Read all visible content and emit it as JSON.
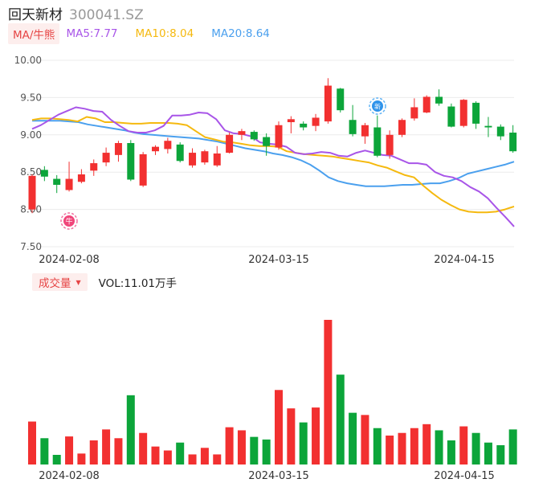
{
  "header": {
    "name": "回天新材",
    "code": "300041.SZ"
  },
  "ma": {
    "tag": "MA/牛熊",
    "ma5": "MA5:7.77",
    "ma10": "MA10:8.04",
    "ma20": "MA20:8.64"
  },
  "volume": {
    "tag": "成交量",
    "text": "VOL:11.01万手"
  },
  "markers": {
    "bull": "牛",
    "new": "新"
  },
  "colors": {
    "up": "#f23030",
    "down": "#0ca53a",
    "ma5": "#a855e8",
    "ma10": "#f5b90f",
    "ma20": "#4ba0ee"
  },
  "chart_data": [
    {
      "type": "candlestick",
      "yticks": [
        "10.00",
        "9.50",
        "9.00",
        "8.50",
        "8.00",
        "7.50"
      ],
      "ylim": [
        7.5,
        10.0
      ],
      "xlabels": [
        "2024-02-08",
        "2024-03-15",
        "2024-04-15"
      ],
      "candles": [
        [
          8.0,
          8.45,
          8.47,
          7.95
        ],
        [
          8.53,
          8.44,
          8.58,
          8.38
        ],
        [
          8.41,
          8.33,
          8.46,
          8.22
        ],
        [
          8.26,
          8.41,
          8.64,
          8.24
        ],
        [
          8.37,
          8.47,
          8.54,
          8.35
        ],
        [
          8.52,
          8.62,
          8.67,
          8.45
        ],
        [
          8.63,
          8.76,
          8.83,
          8.58
        ],
        [
          8.73,
          8.89,
          8.92,
          8.64
        ],
        [
          8.89,
          8.4,
          8.93,
          8.38
        ],
        [
          8.32,
          8.74,
          8.77,
          8.3
        ],
        [
          8.78,
          8.84,
          8.86,
          8.73
        ],
        [
          8.81,
          8.92,
          8.96,
          8.75
        ],
        [
          8.87,
          8.65,
          8.9,
          8.63
        ],
        [
          8.59,
          8.76,
          8.82,
          8.56
        ],
        [
          8.63,
          8.78,
          8.8,
          8.6
        ],
        [
          8.59,
          8.75,
          8.85,
          8.57
        ],
        [
          8.76,
          9.0,
          9.03,
          8.75
        ],
        [
          9.0,
          9.05,
          9.08,
          8.93
        ],
        [
          9.04,
          8.94,
          9.06,
          8.92
        ],
        [
          8.97,
          8.85,
          9.02,
          8.72
        ],
        [
          8.83,
          9.13,
          9.18,
          8.8
        ],
        [
          9.17,
          9.21,
          9.25,
          9.02
        ],
        [
          9.15,
          9.1,
          9.18,
          9.06
        ],
        [
          9.12,
          9.23,
          9.28,
          9.05
        ],
        [
          9.18,
          9.66,
          9.76,
          9.15
        ],
        [
          9.62,
          9.33,
          9.63,
          9.3
        ],
        [
          9.2,
          9.01,
          9.4,
          8.98
        ],
        [
          8.98,
          9.13,
          9.16,
          8.88
        ],
        [
          9.1,
          8.72,
          9.26,
          8.7
        ],
        [
          8.73,
          9.0,
          9.06,
          8.68
        ],
        [
          9.0,
          9.2,
          9.22,
          8.97
        ],
        [
          9.22,
          9.37,
          9.49,
          9.19
        ],
        [
          9.3,
          9.51,
          9.53,
          9.29
        ],
        [
          9.51,
          9.42,
          9.61,
          9.39
        ],
        [
          9.38,
          9.11,
          9.42,
          9.1
        ],
        [
          9.12,
          9.47,
          9.48,
          9.1
        ],
        [
          9.43,
          9.15,
          9.45,
          9.08
        ],
        [
          9.12,
          9.1,
          9.24,
          8.97
        ],
        [
          9.11,
          8.98,
          9.14,
          8.93
        ],
        [
          9.03,
          8.78,
          9.13,
          8.76
        ]
      ],
      "ma5": [
        9.08,
        9.13,
        9.2,
        9.27,
        9.32,
        9.37,
        9.35,
        9.32,
        9.31,
        9.2,
        9.12,
        9.05,
        9.03,
        9.03,
        9.06,
        9.12,
        9.26,
        9.26,
        9.27,
        9.3,
        9.29,
        9.21,
        9.06,
        9.02,
        9.01,
        8.98,
        8.9,
        8.88,
        8.87,
        8.84,
        8.76,
        8.74,
        8.75,
        8.77,
        8.76,
        8.72,
        8.71,
        8.76,
        8.79,
        8.76,
        8.73,
        8.72,
        8.67,
        8.62,
        8.62,
        8.6,
        8.5,
        8.45,
        8.43,
        8.38,
        8.3,
        8.24,
        8.15,
        8.02,
        7.9,
        7.77
      ],
      "ma10": [
        9.2,
        9.22,
        9.22,
        9.21,
        9.2,
        9.18,
        9.24,
        9.22,
        9.17,
        9.17,
        9.16,
        9.15,
        9.15,
        9.16,
        9.16,
        9.16,
        9.15,
        9.13,
        9.05,
        8.97,
        8.94,
        8.91,
        8.9,
        8.88,
        8.86,
        8.85,
        8.85,
        8.84,
        8.78,
        8.76,
        8.74,
        8.73,
        8.72,
        8.71,
        8.69,
        8.67,
        8.65,
        8.63,
        8.59,
        8.56,
        8.51,
        8.46,
        8.43,
        8.32,
        8.22,
        8.13,
        8.06,
        8.0,
        7.97,
        7.96,
        7.96,
        7.97,
        8.0,
        8.04
      ],
      "ma20": [
        9.19,
        9.19,
        9.19,
        9.19,
        9.18,
        9.17,
        9.14,
        9.12,
        9.1,
        9.08,
        9.06,
        9.03,
        9.01,
        9.0,
        8.99,
        8.98,
        8.97,
        8.96,
        8.95,
        8.93,
        8.91,
        8.88,
        8.85,
        8.82,
        8.8,
        8.78,
        8.75,
        8.73,
        8.7,
        8.66,
        8.6,
        8.52,
        8.43,
        8.38,
        8.35,
        8.33,
        8.31,
        8.31,
        8.31,
        8.32,
        8.33,
        8.33,
        8.34,
        8.35,
        8.35,
        8.38,
        8.42,
        8.48,
        8.51,
        8.54,
        8.57,
        8.6,
        8.64
      ]
    },
    {
      "type": "bar",
      "series": [
        {
          "values": [
            9.8,
            6.0,
            2.2,
            6.4,
            2.5,
            5.5,
            8.0,
            6.0,
            15.8,
            7.2,
            4.1,
            3.2,
            5.0,
            2.3,
            3.8,
            2.3,
            8.5,
            7.8,
            6.3,
            5.7,
            17.0,
            12.8,
            9.6,
            13.0,
            33.0,
            20.5,
            11.8,
            11.3,
            8.3,
            6.6,
            7.2,
            8.3,
            9.2,
            7.8,
            5.5,
            8.7,
            7.2,
            5.0,
            4.4,
            8.0
          ]
        }
      ]
    }
  ]
}
